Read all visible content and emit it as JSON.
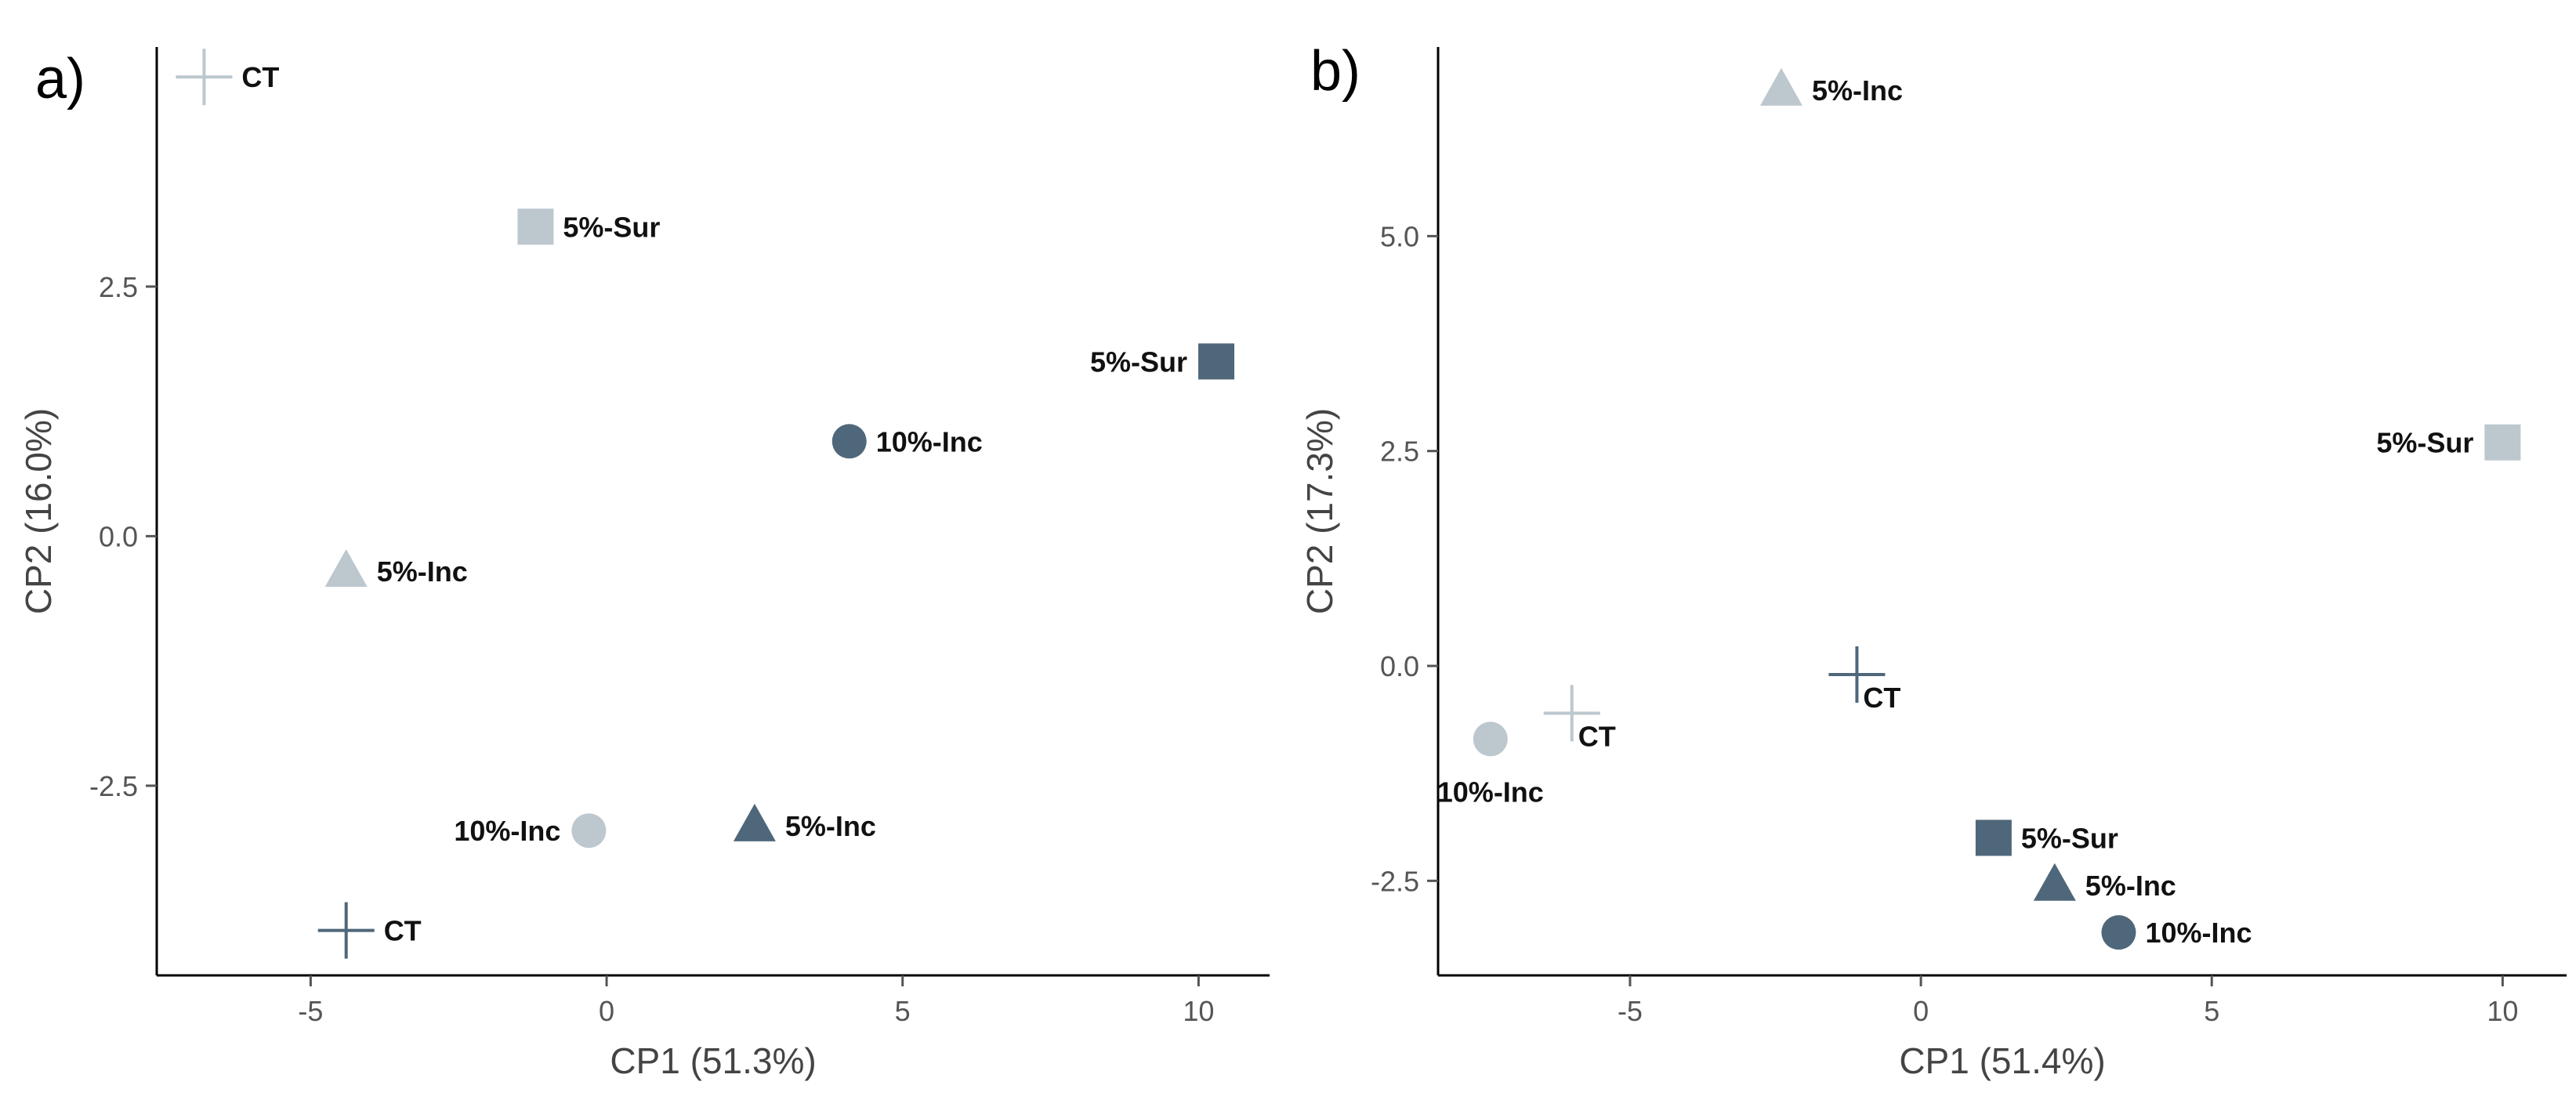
{
  "colors": {
    "light": "#BCC7CE",
    "dark": "#4F677A"
  },
  "chart_data": [
    {
      "type": "scatter",
      "panel": "a)",
      "xlabel": "CP1 (51.3%)",
      "ylabel": "CP2 (16.0%)",
      "xlim": [
        -7.6,
        11.2
      ],
      "ylim": [
        -4.4,
        4.9
      ],
      "xticks": [
        -5,
        0,
        5,
        10
      ],
      "yticks": [
        -2.5,
        0.0,
        2.5
      ],
      "xtick_labels": [
        "-5",
        "0",
        "5",
        "10"
      ],
      "ytick_labels": [
        "-2.5",
        "0.0",
        "2.5"
      ],
      "points": [
        {
          "label": "CT",
          "x": -6.8,
          "y": 4.6,
          "shape": "cross",
          "tone": "light",
          "label_side": "right"
        },
        {
          "label": "5%-Sur",
          "x": -1.2,
          "y": 3.1,
          "shape": "square",
          "tone": "light",
          "label_side": "right"
        },
        {
          "label": "5%-Sur",
          "x": 10.3,
          "y": 1.75,
          "shape": "square",
          "tone": "dark",
          "label_side": "left"
        },
        {
          "label": "10%-Inc",
          "x": 4.1,
          "y": 0.95,
          "shape": "circle",
          "tone": "dark",
          "label_side": "right"
        },
        {
          "label": "5%-Inc",
          "x": -4.4,
          "y": -0.35,
          "shape": "triangle",
          "tone": "light",
          "label_side": "right"
        },
        {
          "label": "10%-Inc",
          "x": -0.3,
          "y": -2.95,
          "shape": "circle",
          "tone": "light",
          "label_side": "left"
        },
        {
          "label": "5%-Inc",
          "x": 2.5,
          "y": -2.9,
          "shape": "triangle",
          "tone": "dark",
          "label_side": "right"
        },
        {
          "label": "CT",
          "x": -4.4,
          "y": -3.95,
          "shape": "cross",
          "tone": "dark",
          "label_side": "right"
        }
      ]
    },
    {
      "type": "scatter",
      "panel": "b)",
      "xlabel": "CP1 (51.4%)",
      "ylabel": "CP2 (17.3%)",
      "xlim": [
        -8.3,
        11.1
      ],
      "ylim": [
        -3.6,
        7.2
      ],
      "xticks": [
        -5,
        0,
        5,
        10
      ],
      "yticks": [
        -2.5,
        0.0,
        2.5,
        5.0
      ],
      "xtick_labels": [
        "-5",
        "0",
        "5",
        "10"
      ],
      "ytick_labels": [
        "-2.5",
        "0.0",
        "2.5",
        "5.0"
      ],
      "points": [
        {
          "label": "5%-Inc",
          "x": -2.4,
          "y": 6.7,
          "shape": "triangle",
          "tone": "light",
          "label_side": "right"
        },
        {
          "label": "5%-Sur",
          "x": 10.0,
          "y": 2.6,
          "shape": "square",
          "tone": "light",
          "label_side": "left"
        },
        {
          "label": "CT",
          "x": -1.1,
          "y": -0.1,
          "shape": "cross",
          "tone": "dark",
          "label_side": "below-right"
        },
        {
          "label": "CT",
          "x": -6.0,
          "y": -0.55,
          "shape": "cross",
          "tone": "light",
          "label_side": "below-right"
        },
        {
          "label": "10%-Inc",
          "x": -7.4,
          "y": -0.85,
          "shape": "circle",
          "tone": "light",
          "label_side": "below"
        },
        {
          "label": "5%-Sur",
          "x": 1.25,
          "y": -2.0,
          "shape": "square",
          "tone": "dark",
          "label_side": "right"
        },
        {
          "label": "5%-Inc",
          "x": 2.3,
          "y": -2.55,
          "shape": "triangle",
          "tone": "dark",
          "label_side": "right"
        },
        {
          "label": "10%-Inc",
          "x": 3.4,
          "y": -3.1,
          "shape": "circle",
          "tone": "dark",
          "label_side": "right"
        }
      ]
    }
  ]
}
